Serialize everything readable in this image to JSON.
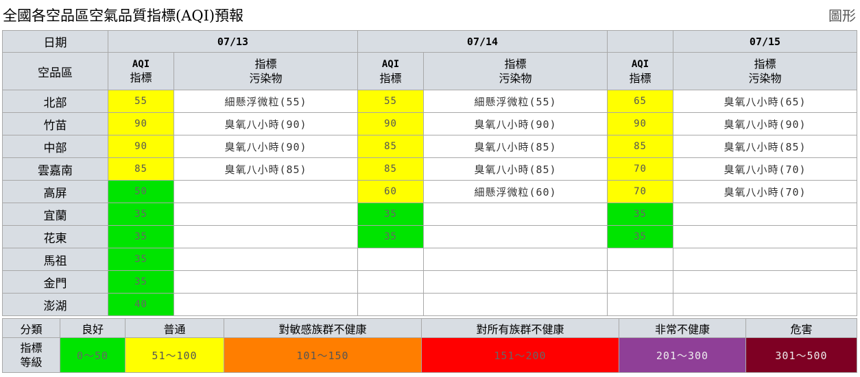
{
  "title": "全國各空品區空氣品質指標(AQI)預報",
  "graph_link": "圖形",
  "header": {
    "date_label": "日期",
    "area_label": "空品區",
    "dates": [
      "07/13",
      "07/14",
      "07/15"
    ],
    "aqi_line1": "AQI",
    "aqi_line2": "指標",
    "pol_line1": "指標",
    "pol_line2": "污染物"
  },
  "colors": {
    "good": "#00e400",
    "moderate": "#ffff00",
    "usg": "#ff7e00",
    "unhealthy": "#ff0000",
    "very_unhealthy": "#8f3f97",
    "hazardous": "#7e0023",
    "header_bg": "#d8dde3"
  },
  "rows": [
    {
      "area": "北部",
      "days": [
        {
          "aqi": "55",
          "level": "moderate",
          "pollutant": "細懸浮微粒(55)"
        },
        {
          "aqi": "55",
          "level": "moderate",
          "pollutant": "細懸浮微粒(55)"
        },
        {
          "aqi": "65",
          "level": "moderate",
          "pollutant": "臭氧八小時(65)"
        }
      ]
    },
    {
      "area": "竹苗",
      "days": [
        {
          "aqi": "90",
          "level": "moderate",
          "pollutant": "臭氧八小時(90)"
        },
        {
          "aqi": "90",
          "level": "moderate",
          "pollutant": "臭氧八小時(90)"
        },
        {
          "aqi": "90",
          "level": "moderate",
          "pollutant": "臭氧八小時(90)"
        }
      ]
    },
    {
      "area": "中部",
      "days": [
        {
          "aqi": "90",
          "level": "moderate",
          "pollutant": "臭氧八小時(90)"
        },
        {
          "aqi": "85",
          "level": "moderate",
          "pollutant": "臭氧八小時(85)"
        },
        {
          "aqi": "85",
          "level": "moderate",
          "pollutant": "臭氧八小時(85)"
        }
      ]
    },
    {
      "area": "雲嘉南",
      "days": [
        {
          "aqi": "85",
          "level": "moderate",
          "pollutant": "臭氧八小時(85)"
        },
        {
          "aqi": "85",
          "level": "moderate",
          "pollutant": "臭氧八小時(85)"
        },
        {
          "aqi": "70",
          "level": "moderate",
          "pollutant": "臭氧八小時(70)"
        }
      ]
    },
    {
      "area": "高屏",
      "days": [
        {
          "aqi": "50",
          "level": "good",
          "pollutant": ""
        },
        {
          "aqi": "60",
          "level": "moderate",
          "pollutant": "細懸浮微粒(60)"
        },
        {
          "aqi": "70",
          "level": "moderate",
          "pollutant": "臭氧八小時(70)"
        }
      ]
    },
    {
      "area": "宜蘭",
      "days": [
        {
          "aqi": "35",
          "level": "good",
          "pollutant": ""
        },
        {
          "aqi": "35",
          "level": "good",
          "pollutant": ""
        },
        {
          "aqi": "35",
          "level": "good",
          "pollutant": ""
        }
      ]
    },
    {
      "area": "花東",
      "days": [
        {
          "aqi": "35",
          "level": "good",
          "pollutant": ""
        },
        {
          "aqi": "35",
          "level": "good",
          "pollutant": ""
        },
        {
          "aqi": "35",
          "level": "good",
          "pollutant": ""
        }
      ]
    },
    {
      "area": "馬祖",
      "days": [
        {
          "aqi": "35",
          "level": "good",
          "pollutant": ""
        },
        {
          "aqi": "",
          "level": "",
          "pollutant": ""
        },
        {
          "aqi": "",
          "level": "",
          "pollutant": ""
        }
      ]
    },
    {
      "area": "金門",
      "days": [
        {
          "aqi": "35",
          "level": "good",
          "pollutant": ""
        },
        {
          "aqi": "",
          "level": "",
          "pollutant": ""
        },
        {
          "aqi": "",
          "level": "",
          "pollutant": ""
        }
      ]
    },
    {
      "area": "澎湖",
      "days": [
        {
          "aqi": "40",
          "level": "good",
          "pollutant": ""
        },
        {
          "aqi": "",
          "level": "",
          "pollutant": ""
        },
        {
          "aqi": "",
          "level": "",
          "pollutant": ""
        }
      ]
    }
  ],
  "legend": {
    "category_label": "分類",
    "index_label_line1": "指標",
    "index_label_line2": "等級",
    "levels": [
      {
        "key": "good",
        "name": "良好",
        "range": "0～50",
        "text_color": "#666666"
      },
      {
        "key": "moderate",
        "name": "普通",
        "range": "51～100",
        "text_color": "#555555"
      },
      {
        "key": "usg",
        "name": "對敏感族群不健康",
        "range": "101～150",
        "text_color": "#555555"
      },
      {
        "key": "unhealthy",
        "name": "對所有族群不健康",
        "range": "151～200",
        "text_color": "#666666"
      },
      {
        "key": "very_unhealthy",
        "name": "非常不健康",
        "range": "201～300",
        "text_color": "#eeeeee"
      },
      {
        "key": "hazardous",
        "name": "危害",
        "range": "301～500",
        "text_color": "#eeeeee"
      }
    ]
  }
}
